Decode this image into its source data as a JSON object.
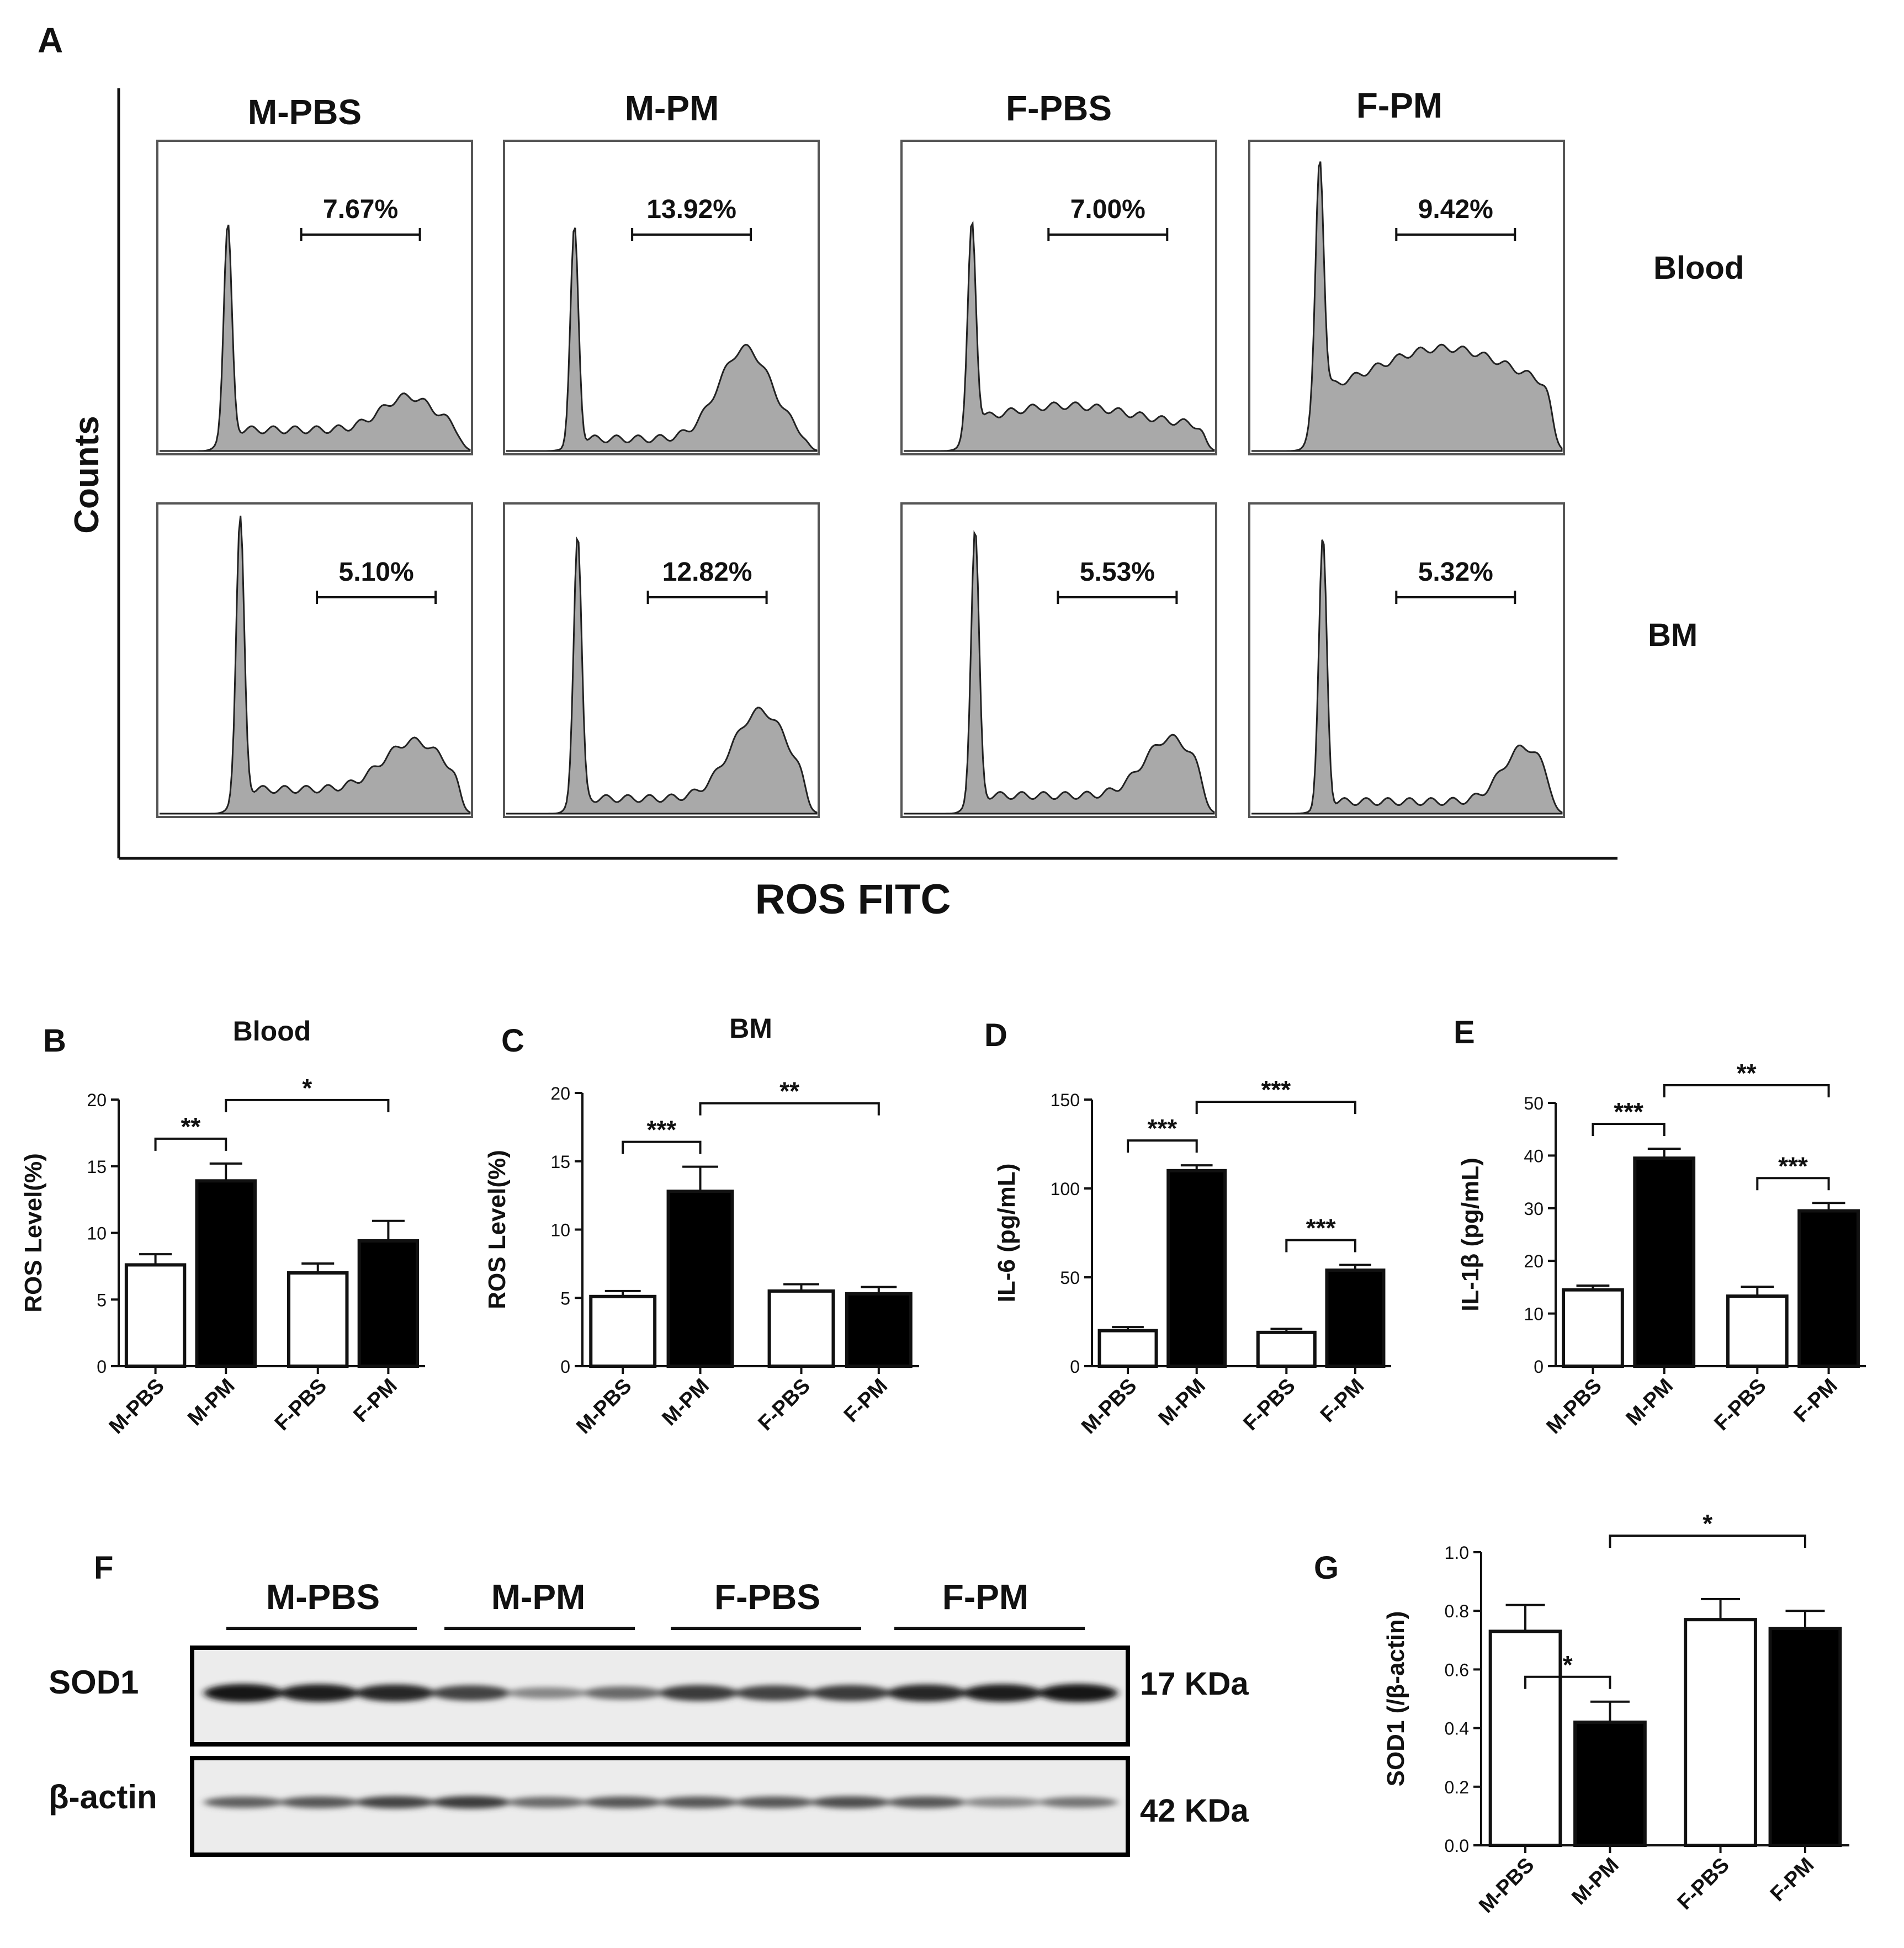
{
  "panel_letters": {
    "A": "A",
    "B": "B",
    "C": "C",
    "D": "D",
    "E": "E",
    "F": "F",
    "G": "G"
  },
  "panel_a": {
    "y_label": "Counts",
    "x_label": "ROS FITC",
    "columns": [
      "M-PBS",
      "M-PM",
      "F-PBS",
      "F-PM"
    ],
    "rows": [
      "Blood",
      "BM"
    ],
    "percents": [
      [
        "7.67%",
        "13.92%",
        "7.00%",
        "9.42%"
      ],
      [
        "5.10%",
        "12.82%",
        "5.53%",
        "5.32%"
      ]
    ],
    "fill_color": "#a9a9a9"
  },
  "colors": {
    "control": "#ffffff",
    "treated": "#000000",
    "outline": "#111111"
  },
  "chart_data": [
    {
      "type": "bar",
      "panel": "B",
      "title": "Blood",
      "ylabel": "ROS Level(%)",
      "categories": [
        "M-PBS",
        "M-PM",
        "F-PBS",
        "F-PM"
      ],
      "values": [
        7.6,
        13.9,
        7.0,
        9.4
      ],
      "errors": [
        0.8,
        1.3,
        0.7,
        1.5
      ],
      "ylim": [
        0,
        20
      ],
      "yticks": [
        0,
        5,
        10,
        15,
        20
      ],
      "ytick_labels": [
        "0",
        "5",
        "10",
        "15",
        "20"
      ],
      "significance": [
        {
          "label": "**",
          "from": 0,
          "to": 1
        },
        {
          "label": "*",
          "from": 1,
          "to": 3
        }
      ]
    },
    {
      "type": "bar",
      "panel": "C",
      "title": "BM",
      "ylabel": "ROS Level(%)",
      "categories": [
        "M-PBS",
        "M-PM",
        "F-PBS",
        "F-PM"
      ],
      "values": [
        5.1,
        12.8,
        5.5,
        5.3
      ],
      "errors": [
        0.4,
        1.8,
        0.5,
        0.5
      ],
      "ylim": [
        0,
        20
      ],
      "yticks": [
        0,
        5,
        10,
        15,
        20
      ],
      "ytick_labels": [
        "0",
        "5",
        "10",
        "15",
        "20"
      ],
      "significance": [
        {
          "label": "***",
          "from": 0,
          "to": 1
        },
        {
          "label": "**",
          "from": 1,
          "to": 3
        }
      ]
    },
    {
      "type": "bar",
      "panel": "D",
      "title": "",
      "ylabel": "IL-6 (pg/mL)",
      "categories": [
        "M-PBS",
        "M-PM",
        "F-PBS",
        "F-PM"
      ],
      "values": [
        20,
        110,
        19,
        54
      ],
      "errors": [
        2,
        3,
        2,
        3
      ],
      "ylim": [
        0,
        150
      ],
      "yticks": [
        0,
        50,
        100,
        150
      ],
      "ytick_labels": [
        "0",
        "50",
        "100",
        "150"
      ],
      "significance": [
        {
          "label": "***",
          "from": 0,
          "to": 1
        },
        {
          "label": "***",
          "from": 1,
          "to": 3
        },
        {
          "label": "***",
          "from": 2,
          "to": 3
        }
      ]
    },
    {
      "type": "bar",
      "panel": "E",
      "title": "",
      "ylabel": "IL-1β (pg/mL)",
      "categories": [
        "M-PBS",
        "M-PM",
        "F-PBS",
        "F-PM"
      ],
      "values": [
        14.5,
        39.5,
        13.3,
        29.5
      ],
      "errors": [
        0.8,
        1.8,
        1.8,
        1.5
      ],
      "ylim": [
        0,
        50
      ],
      "yticks": [
        0,
        10,
        20,
        30,
        40,
        50
      ],
      "ytick_labels": [
        "0",
        "10",
        "20",
        "30",
        "40",
        "50"
      ],
      "significance": [
        {
          "label": "***",
          "from": 0,
          "to": 1
        },
        {
          "label": "**",
          "from": 1,
          "to": 3
        },
        {
          "label": "***",
          "from": 2,
          "to": 3
        }
      ]
    },
    {
      "type": "bar",
      "panel": "G",
      "title": "",
      "ylabel": "SOD1 (/β-actin)",
      "categories": [
        "M-PBS",
        "M-PM",
        "F-PBS",
        "F-PM"
      ],
      "values": [
        0.73,
        0.42,
        0.77,
        0.74
      ],
      "errors": [
        0.09,
        0.07,
        0.07,
        0.06
      ],
      "ylim": [
        0,
        1.0
      ],
      "yticks": [
        0,
        0.2,
        0.4,
        0.6,
        0.8,
        1.0
      ],
      "ytick_labels": [
        "0.0",
        "0.2",
        "0.4",
        "0.6",
        "0.8",
        "1.0"
      ],
      "significance": [
        {
          "label": "*",
          "from": 0,
          "to": 1
        },
        {
          "label": "*",
          "from": 1,
          "to": 3
        }
      ]
    }
  ],
  "western_blot": {
    "groups": [
      "M-PBS",
      "M-PM",
      "F-PBS",
      "F-PM"
    ],
    "rows": [
      {
        "label": "SOD1",
        "size": "17 KDa",
        "band_intensity": [
          0.95,
          0.9,
          0.85,
          0.7,
          0.35,
          0.5,
          0.75,
          0.7,
          0.75,
          0.85,
          0.9,
          0.95
        ]
      },
      {
        "label": "β-actin",
        "size": "42 KDa",
        "band_intensity": [
          0.55,
          0.6,
          0.7,
          0.75,
          0.5,
          0.6,
          0.6,
          0.6,
          0.65,
          0.6,
          0.35,
          0.45
        ]
      }
    ]
  }
}
